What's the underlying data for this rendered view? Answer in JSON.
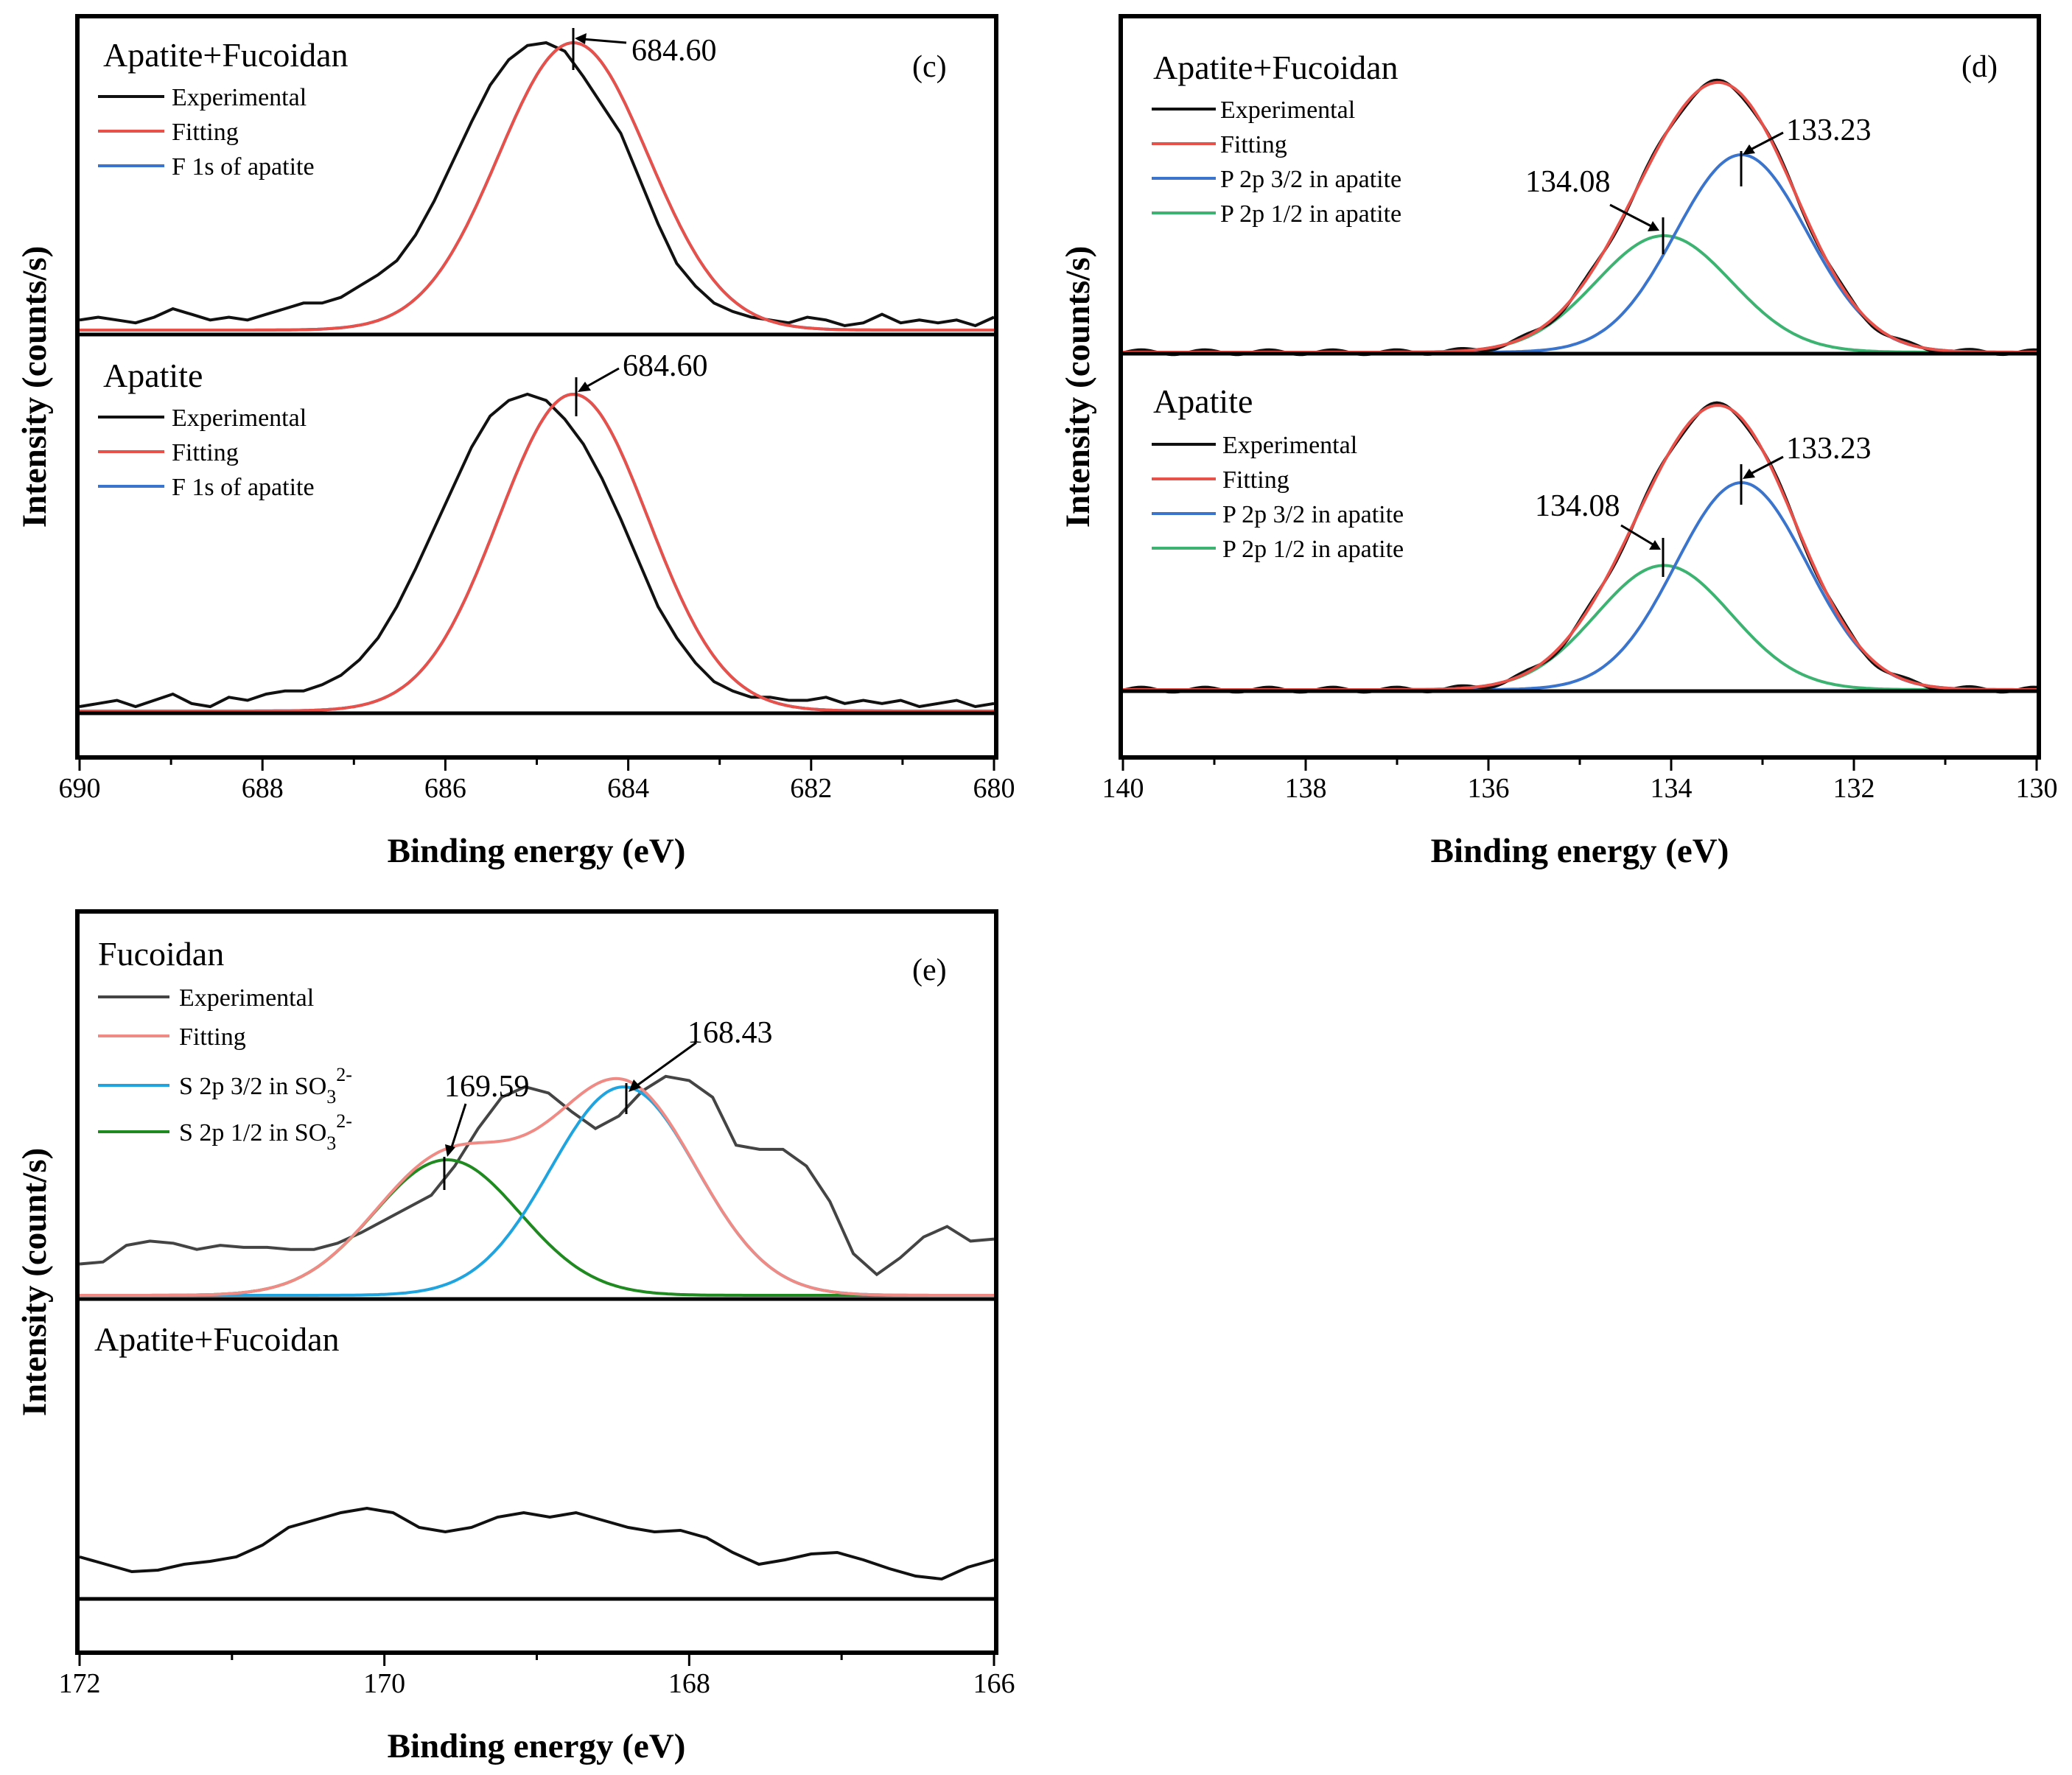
{
  "colors": {
    "experimental": "#111111",
    "fitting": "#e8504a",
    "component_a": "#3a74cc",
    "component_b": "#3cb371",
    "e_experimental": "#444444",
    "e_fitting": "#f08a84",
    "e_component_a": "#1fa4e0",
    "e_component_b": "#1f8a1f"
  },
  "chart_data": [
    {
      "id": "c",
      "panel_letter": "(c)",
      "type": "line",
      "xlabel": "Binding energy (eV)",
      "ylabel": "Intensity (counts/s)",
      "xlim": [
        690,
        680
      ],
      "xticks": [
        "690",
        "688",
        "686",
        "684",
        "682",
        "680"
      ],
      "xtick_values": [
        690,
        688,
        686,
        684,
        682,
        680
      ],
      "subpanels": [
        {
          "title": "Apatite+Fucoidan",
          "legend": [
            "Experimental",
            "Fitting",
            "F 1s of apatite"
          ],
          "peaks": [
            {
              "center": 684.6,
              "label": "684.60",
              "amp": 1.0,
              "sigma": 0.82,
              "color_key": "component_a"
            }
          ],
          "noise": [
            0.02,
            0.03,
            0.02,
            0.01,
            0.03,
            0.06,
            0.04,
            0.02,
            0.03,
            0.02,
            0.04,
            0.06,
            0.08,
            0.08,
            0.1,
            0.14,
            0.18,
            0.23,
            0.32,
            0.44,
            0.58,
            0.72,
            0.85,
            0.94,
            0.99,
            1.0,
            0.97,
            0.88,
            0.78,
            0.68,
            0.52,
            0.36,
            0.22,
            0.14,
            0.08,
            0.05,
            0.03,
            0.02,
            0.01,
            0.03,
            0.02,
            0.0,
            0.01,
            0.04,
            0.01,
            0.02,
            0.01,
            0.02,
            0.0,
            0.03
          ]
        },
        {
          "title": "Apatite",
          "legend": [
            "Experimental",
            "Fitting",
            "F 1s of apatite"
          ],
          "peaks": [
            {
              "center": 684.6,
              "label": "684.60",
              "amp": 1.0,
              "sigma": 0.82,
              "color_key": "component_a"
            }
          ],
          "noise": [
            0.0,
            0.01,
            0.02,
            0.0,
            0.02,
            0.04,
            0.01,
            0.0,
            0.03,
            0.02,
            0.04,
            0.05,
            0.05,
            0.07,
            0.1,
            0.15,
            0.22,
            0.32,
            0.44,
            0.57,
            0.7,
            0.83,
            0.93,
            0.98,
            1.0,
            0.98,
            0.92,
            0.84,
            0.73,
            0.6,
            0.46,
            0.32,
            0.22,
            0.14,
            0.08,
            0.05,
            0.03,
            0.03,
            0.02,
            0.02,
            0.03,
            0.01,
            0.02,
            0.01,
            0.02,
            0.0,
            0.01,
            0.02,
            0.0,
            0.01
          ]
        }
      ]
    },
    {
      "id": "d",
      "panel_letter": "(d)",
      "type": "line",
      "xlabel": "Binding energy (eV)",
      "ylabel": "Intensity (counts/s)",
      "xlim": [
        140,
        130
      ],
      "xticks": [
        "140",
        "138",
        "136",
        "134",
        "132",
        "130"
      ],
      "xtick_values": [
        140,
        138,
        136,
        134,
        132,
        130
      ],
      "subpanels": [
        {
          "title": "Apatite+Fucoidan",
          "legend": [
            "Experimental",
            "Fitting",
            "P 2p 3/2 in apatite",
            "P 2p 1/2 in apatite"
          ],
          "peaks": [
            {
              "center": 133.23,
              "label": "133.23",
              "amp": 1.0,
              "sigma": 0.72,
              "color_key": "component_a"
            },
            {
              "center": 134.08,
              "label": "134.08",
              "amp": 0.59,
              "sigma": 0.74,
              "color_key": "component_b"
            }
          ]
        },
        {
          "title": "Apatite",
          "legend": [
            "Experimental",
            "Fitting",
            "P 2p 3/2 in apatite",
            "P 2p 1/2 in apatite"
          ],
          "peaks": [
            {
              "center": 133.23,
              "label": "133.23",
              "amp": 1.0,
              "sigma": 0.72,
              "color_key": "component_a"
            },
            {
              "center": 134.08,
              "label": "134.08",
              "amp": 0.6,
              "sigma": 0.74,
              "color_key": "component_b"
            }
          ]
        }
      ]
    },
    {
      "id": "e",
      "panel_letter": "(e)",
      "type": "line",
      "xlabel": "Binding energy (eV)",
      "ylabel": "Intensity (count/s)",
      "xlim": [
        172,
        166
      ],
      "xticks": [
        "172",
        "170",
        "168",
        "166"
      ],
      "xtick_values": [
        172,
        170,
        168,
        166
      ],
      "subpanels": [
        {
          "title": "Fucoidan",
          "legend": [
            "Experimental",
            "Fitting",
            "S 2p 3/2 in SO",
            "S 2p 1/2 in SO"
          ],
          "legend_sub": "3",
          "legend_sup": "2-",
          "peaks": [
            {
              "center": 168.43,
              "label": "168.43",
              "amp": 1.0,
              "sigma": 0.48,
              "color_key": "e_component_a"
            },
            {
              "center": 169.59,
              "label": "169.59",
              "amp": 0.65,
              "sigma": 0.48,
              "color_key": "e_component_b"
            }
          ],
          "experimental": [
            0.15,
            0.16,
            0.24,
            0.26,
            0.25,
            0.22,
            0.24,
            0.23,
            0.23,
            0.22,
            0.22,
            0.25,
            0.3,
            0.36,
            0.42,
            0.48,
            0.62,
            0.8,
            0.95,
            1.0,
            0.97,
            0.88,
            0.8,
            0.86,
            0.98,
            1.05,
            1.03,
            0.95,
            0.72,
            0.7,
            0.7,
            0.62,
            0.45,
            0.2,
            0.1,
            0.18,
            0.28,
            0.33,
            0.26,
            0.27
          ]
        },
        {
          "title": "Apatite+Fucoidan",
          "legend": [],
          "peaks": [],
          "experimental": [
            0.25,
            0.2,
            0.15,
            0.16,
            0.2,
            0.22,
            0.25,
            0.33,
            0.45,
            0.5,
            0.55,
            0.58,
            0.55,
            0.45,
            0.42,
            0.45,
            0.52,
            0.55,
            0.52,
            0.55,
            0.5,
            0.45,
            0.42,
            0.43,
            0.38,
            0.28,
            0.2,
            0.23,
            0.27,
            0.28,
            0.23,
            0.17,
            0.12,
            0.1,
            0.18,
            0.23
          ]
        }
      ]
    }
  ]
}
